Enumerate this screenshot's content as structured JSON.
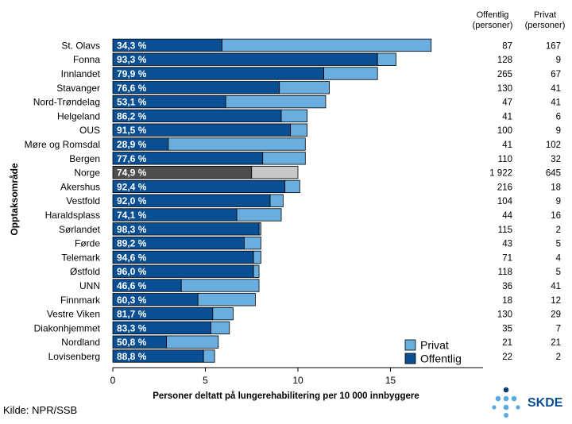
{
  "chart_data": {
    "type": "bar",
    "orientation": "horizontal",
    "stacked": true,
    "ylabel": "Opptaksområde",
    "xlabel": "Personer deltatt på lungerehabilitering per 10 000 innbyggere",
    "xlim": [
      0,
      20
    ],
    "xticks": [
      "0",
      "5",
      "10",
      "15"
    ],
    "xtick_values": [
      0,
      5,
      10,
      15
    ],
    "categories": [
      "St. Olavs",
      "Fonna",
      "Innlandet",
      "Stavanger",
      "Nord-Trøndelag",
      "Helgeland",
      "OUS",
      "Møre og Romsdal",
      "Bergen",
      "Norge",
      "Akershus",
      "Vestfold",
      "Haraldsplass",
      "Sørlandet",
      "Førde",
      "Telemark",
      "Østfold",
      "UNN",
      "Finnmark",
      "Vestre Viken",
      "Diakonhjemmet",
      "Nordland",
      "Lovisenberg"
    ],
    "highlight_category": "Norge",
    "series": [
      {
        "name": "Offentlig",
        "values": [
          5.9,
          14.3,
          11.4,
          9.0,
          6.1,
          9.1,
          9.6,
          3.0,
          8.1,
          7.5,
          9.3,
          8.5,
          6.7,
          7.9,
          7.1,
          7.6,
          7.6,
          3.7,
          4.6,
          5.4,
          5.3,
          2.9,
          4.9
        ]
      },
      {
        "name": "Privat",
        "values": [
          11.3,
          1.0,
          2.9,
          2.7,
          5.4,
          1.4,
          0.9,
          7.4,
          2.3,
          2.5,
          0.8,
          0.7,
          2.4,
          0.1,
          0.9,
          0.4,
          0.3,
          4.2,
          3.1,
          1.1,
          1.0,
          2.8,
          0.6
        ]
      }
    ],
    "percent_labels": [
      "34,3 %",
      "93,3 %",
      "79,9 %",
      "76,6 %",
      "53,1 %",
      "86,2 %",
      "91,5 %",
      "28,9 %",
      "77,6 %",
      "74,9 %",
      "92,4 %",
      "92,0 %",
      "74,1 %",
      "98,3 %",
      "89,2 %",
      "94,6 %",
      "96,0 %",
      "46,6 %",
      "60,3 %",
      "81,7 %",
      "83,3 %",
      "50,8 %",
      "88,8 %"
    ],
    "table": {
      "headers": [
        [
          "Offentlig",
          "(personer)"
        ],
        [
          "Privat",
          "(personer)"
        ]
      ],
      "offentlig": [
        "87",
        "128",
        "265",
        "130",
        "47",
        "41",
        "100",
        "41",
        "110",
        "1 922",
        "216",
        "104",
        "44",
        "115",
        "43",
        "71",
        "118",
        "36",
        "18",
        "130",
        "35",
        "21",
        "22"
      ],
      "privat": [
        "167",
        "9",
        "67",
        "41",
        "41",
        "6",
        "9",
        "102",
        "32",
        "645",
        "18",
        "9",
        "16",
        "2",
        "5",
        "4",
        "5",
        "41",
        "12",
        "29",
        "7",
        "21",
        "2"
      ]
    },
    "legend": {
      "position": "bottom-right",
      "entries": [
        "Privat",
        "Offentlig"
      ]
    },
    "colors": {
      "offentlig": "#0a4f93",
      "privat": "#6aaee0",
      "norge_offentlig": "#4d4d4d",
      "norge_privat": "#c8c8c8",
      "bar_outline": "#000000"
    },
    "grid": false
  },
  "source": "Kilde: NPR/SSB",
  "logo": {
    "text": "SKDE",
    "dot_dark": "#0a3a6e",
    "dot_light": "#5aa9e0",
    "text_color": "#0a4f93"
  }
}
